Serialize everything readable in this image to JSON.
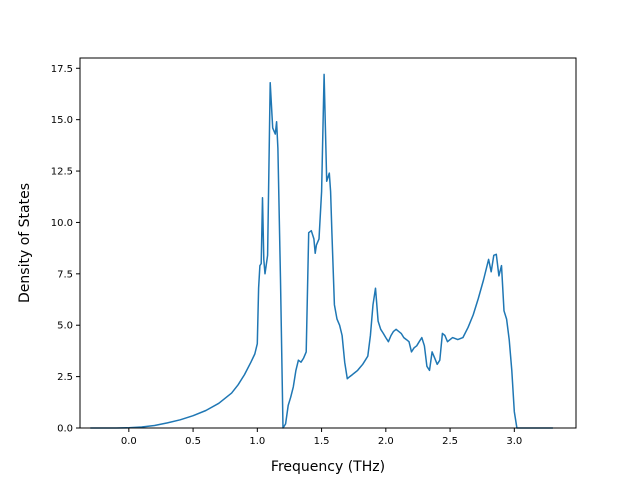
{
  "chart_data": {
    "type": "line",
    "title": "",
    "xlabel": "Frequency (THz)",
    "ylabel": "Density of States",
    "xlim": [
      -0.38,
      3.48
    ],
    "ylim": [
      0,
      18.0
    ],
    "xticks": [
      0.0,
      0.5,
      1.0,
      1.5,
      2.0,
      2.5,
      3.0
    ],
    "xtick_labels": [
      "0.0",
      "0.5",
      "1.0",
      "1.5",
      "2.0",
      "2.5",
      "3.0"
    ],
    "yticks": [
      0.0,
      2.5,
      5.0,
      7.5,
      10.0,
      12.5,
      15.0,
      17.5
    ],
    "ytick_labels": [
      "0.0",
      "2.5",
      "5.0",
      "7.5",
      "10.0",
      "12.5",
      "15.0",
      "17.5"
    ],
    "grid": false,
    "legend": false,
    "line_color": "#1f77b4",
    "series": [
      {
        "x": [
          -0.3,
          -0.1,
          0.0,
          0.1,
          0.2,
          0.3,
          0.4,
          0.5,
          0.6,
          0.7,
          0.8,
          0.85,
          0.9,
          0.95,
          0.98,
          1.0,
          1.01,
          1.02,
          1.03,
          1.04,
          1.05,
          1.06,
          1.08,
          1.1,
          1.12,
          1.14,
          1.15,
          1.16,
          1.18,
          1.2,
          1.22,
          1.24,
          1.26,
          1.28,
          1.3,
          1.32,
          1.34,
          1.36,
          1.38,
          1.4,
          1.42,
          1.44,
          1.45,
          1.46,
          1.48,
          1.5,
          1.52,
          1.54,
          1.56,
          1.57,
          1.58,
          1.6,
          1.62,
          1.64,
          1.66,
          1.68,
          1.7,
          1.72,
          1.74,
          1.76,
          1.78,
          1.8,
          1.82,
          1.84,
          1.86,
          1.88,
          1.9,
          1.92,
          1.94,
          1.96,
          1.98,
          2.0,
          2.02,
          2.04,
          2.06,
          2.08,
          2.1,
          2.12,
          2.14,
          2.16,
          2.18,
          2.2,
          2.22,
          2.24,
          2.26,
          2.28,
          2.3,
          2.32,
          2.34,
          2.36,
          2.38,
          2.4,
          2.42,
          2.44,
          2.46,
          2.48,
          2.5,
          2.52,
          2.54,
          2.56,
          2.6,
          2.64,
          2.68,
          2.72,
          2.76,
          2.8,
          2.82,
          2.84,
          2.86,
          2.88,
          2.9,
          2.92,
          2.94,
          2.96,
          2.98,
          3.0,
          3.02,
          3.1,
          3.2,
          3.3
        ],
        "y": [
          0,
          0,
          0.01,
          0.05,
          0.12,
          0.25,
          0.4,
          0.6,
          0.85,
          1.2,
          1.7,
          2.1,
          2.6,
          3.2,
          3.6,
          4.1,
          6.8,
          7.9,
          8.0,
          11.2,
          8.2,
          7.5,
          8.4,
          16.8,
          14.6,
          14.3,
          14.9,
          13.6,
          7.2,
          0.0,
          0.2,
          1.1,
          1.5,
          2.0,
          2.8,
          3.3,
          3.2,
          3.4,
          3.7,
          9.5,
          9.6,
          9.2,
          8.5,
          8.9,
          9.2,
          11.5,
          17.2,
          12.0,
          12.4,
          11.5,
          9.5,
          6.0,
          5.3,
          5.0,
          4.5,
          3.2,
          2.4,
          2.5,
          2.6,
          2.7,
          2.8,
          2.95,
          3.1,
          3.3,
          3.5,
          4.5,
          6.0,
          6.8,
          5.2,
          4.8,
          4.6,
          4.4,
          4.2,
          4.5,
          4.7,
          4.8,
          4.7,
          4.6,
          4.4,
          4.3,
          4.2,
          3.7,
          3.9,
          4.0,
          4.2,
          4.4,
          4.0,
          3.0,
          2.8,
          3.7,
          3.4,
          3.1,
          3.3,
          4.6,
          4.5,
          4.2,
          4.3,
          4.4,
          4.35,
          4.3,
          4.4,
          4.9,
          5.5,
          6.3,
          7.2,
          8.2,
          7.6,
          8.4,
          8.45,
          7.4,
          7.9,
          5.7,
          5.3,
          4.3,
          2.8,
          0.8,
          0,
          0,
          0,
          0
        ]
      }
    ]
  }
}
